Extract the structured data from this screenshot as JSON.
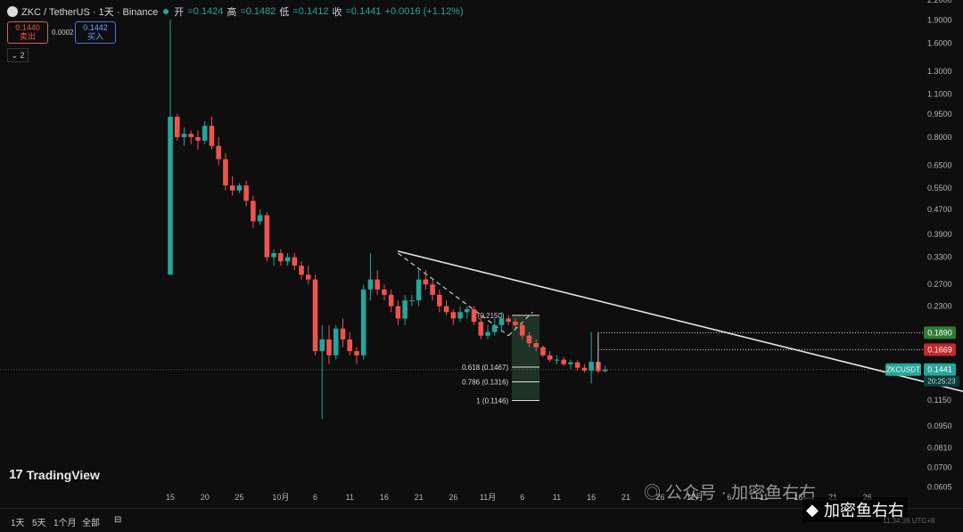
{
  "header": {
    "symbol": "ZKC / TetherUS · 1天 · Binance",
    "open_label": "开",
    "open": "=0.1424",
    "high_label": "高",
    "high": "=0.1482",
    "low_label": "低",
    "low": "=0.1412",
    "close_label": "收",
    "close": "=0.1441",
    "change": "+0.0016 (+1.12%)"
  },
  "trade": {
    "sell_price": "0.1440",
    "sell_label": "卖出",
    "spread": "0.0002",
    "buy_price": "0.1442",
    "buy_label": "买入"
  },
  "indicator_count": "2",
  "logo": "TradingView",
  "bottom": {
    "ranges": [
      "1天",
      "5天",
      "1个月",
      "全部"
    ],
    "clock": "11:34:36 UTC+8"
  },
  "watermark": {
    "text1": "公众号 · 加密鱼右右",
    "text2": "加密鱼右右"
  },
  "colors": {
    "up": "#26a69a",
    "down": "#ef5350",
    "bg": "#0e0e0e"
  },
  "chart_data": {
    "type": "candlestick",
    "yscale": "log",
    "ylim": [
      0.06,
      2.2
    ],
    "price_ticks": [
      2.2,
      1.9,
      1.6,
      1.3,
      1.1,
      0.95,
      0.8,
      0.65,
      0.55,
      0.47,
      0.39,
      0.33,
      0.27,
      0.23,
      0.19,
      0.16,
      0.135,
      0.115,
      0.095,
      0.081,
      0.07,
      0.0605
    ],
    "price_tick_labels": [
      "2.2000",
      "1.9000",
      "1.6000",
      "1.3000",
      "1.1000",
      "0.9500",
      "0.8000",
      "0.6500",
      "0.5500",
      "0.4700",
      "0.3900",
      "0.3300",
      "0.2700",
      "0.2300",
      "",
      "",
      "",
      "0.1150",
      "0.0950",
      "0.0810",
      "0.0700",
      "0.0605"
    ],
    "x_ticks": [
      {
        "label": "15",
        "day": 0
      },
      {
        "label": "20",
        "day": 5
      },
      {
        "label": "25",
        "day": 10
      },
      {
        "label": "10月",
        "day": 16
      },
      {
        "label": "6",
        "day": 21
      },
      {
        "label": "11",
        "day": 26
      },
      {
        "label": "16",
        "day": 31
      },
      {
        "label": "21",
        "day": 36
      },
      {
        "label": "26",
        "day": 41
      },
      {
        "label": "11月",
        "day": 46
      },
      {
        "label": "6",
        "day": 51
      },
      {
        "label": "11",
        "day": 56
      },
      {
        "label": "16",
        "day": 61
      },
      {
        "label": "21",
        "day": 66
      },
      {
        "label": "26",
        "day": 71
      },
      {
        "label": "12月",
        "day": 76
      },
      {
        "label": "6",
        "day": 81
      },
      {
        "label": "11",
        "day": 86
      },
      {
        "label": "16",
        "day": 91
      },
      {
        "label": "21",
        "day": 96
      },
      {
        "label": "26",
        "day": 101
      }
    ],
    "candles": [
      [
        0.29,
        1.9,
        0.29,
        0.93
      ],
      [
        0.93,
        0.95,
        0.78,
        0.8
      ],
      [
        0.8,
        0.86,
        0.75,
        0.82
      ],
      [
        0.82,
        0.84,
        0.76,
        0.8
      ],
      [
        0.8,
        0.84,
        0.73,
        0.78
      ],
      [
        0.78,
        0.9,
        0.76,
        0.87
      ],
      [
        0.87,
        0.93,
        0.73,
        0.75
      ],
      [
        0.75,
        0.8,
        0.65,
        0.68
      ],
      [
        0.68,
        0.71,
        0.54,
        0.56
      ],
      [
        0.56,
        0.6,
        0.52,
        0.54
      ],
      [
        0.54,
        0.57,
        0.53,
        0.56
      ],
      [
        0.56,
        0.58,
        0.48,
        0.5
      ],
      [
        0.5,
        0.52,
        0.41,
        0.43
      ],
      [
        0.43,
        0.47,
        0.42,
        0.45
      ],
      [
        0.45,
        0.46,
        0.32,
        0.33
      ],
      [
        0.33,
        0.35,
        0.31,
        0.34
      ],
      [
        0.34,
        0.35,
        0.31,
        0.32
      ],
      [
        0.32,
        0.34,
        0.31,
        0.33
      ],
      [
        0.33,
        0.34,
        0.3,
        0.31
      ],
      [
        0.31,
        0.32,
        0.28,
        0.29
      ],
      [
        0.29,
        0.31,
        0.27,
        0.28
      ],
      [
        0.28,
        0.29,
        0.16,
        0.165
      ],
      [
        0.165,
        0.2,
        0.1,
        0.18
      ],
      [
        0.18,
        0.2,
        0.15,
        0.16
      ],
      [
        0.16,
        0.2,
        0.155,
        0.195
      ],
      [
        0.195,
        0.21,
        0.17,
        0.18
      ],
      [
        0.18,
        0.19,
        0.16,
        0.165
      ],
      [
        0.165,
        0.17,
        0.15,
        0.16
      ],
      [
        0.16,
        0.27,
        0.155,
        0.26
      ],
      [
        0.26,
        0.34,
        0.24,
        0.28
      ],
      [
        0.28,
        0.3,
        0.25,
        0.26
      ],
      [
        0.26,
        0.27,
        0.24,
        0.25
      ],
      [
        0.25,
        0.26,
        0.22,
        0.23
      ],
      [
        0.23,
        0.24,
        0.2,
        0.21
      ],
      [
        0.21,
        0.25,
        0.2,
        0.24
      ],
      [
        0.24,
        0.25,
        0.23,
        0.24
      ],
      [
        0.24,
        0.3,
        0.23,
        0.28
      ],
      [
        0.28,
        0.3,
        0.26,
        0.27
      ],
      [
        0.27,
        0.28,
        0.24,
        0.25
      ],
      [
        0.25,
        0.26,
        0.22,
        0.23
      ],
      [
        0.23,
        0.24,
        0.215,
        0.22
      ],
      [
        0.22,
        0.225,
        0.2,
        0.21
      ],
      [
        0.21,
        0.23,
        0.205,
        0.22
      ],
      [
        0.22,
        0.23,
        0.21,
        0.225
      ],
      [
        0.225,
        0.23,
        0.2,
        0.205
      ],
      [
        0.205,
        0.215,
        0.18,
        0.185
      ],
      [
        0.185,
        0.2,
        0.18,
        0.19
      ],
      [
        0.19,
        0.21,
        0.185,
        0.2
      ],
      [
        0.2,
        0.22,
        0.19,
        0.21
      ],
      [
        0.21,
        0.215,
        0.2,
        0.205
      ],
      [
        0.205,
        0.21,
        0.195,
        0.2
      ],
      [
        0.2,
        0.205,
        0.18,
        0.185
      ],
      [
        0.185,
        0.19,
        0.17,
        0.175
      ],
      [
        0.175,
        0.18,
        0.165,
        0.17
      ],
      [
        0.17,
        0.172,
        0.158,
        0.16
      ],
      [
        0.16,
        0.165,
        0.152,
        0.155
      ],
      [
        0.155,
        0.16,
        0.15,
        0.155
      ],
      [
        0.155,
        0.158,
        0.148,
        0.15
      ],
      [
        0.15,
        0.155,
        0.145,
        0.152
      ],
      [
        0.152,
        0.154,
        0.143,
        0.146
      ],
      [
        0.146,
        0.15,
        0.141,
        0.143
      ],
      [
        0.143,
        0.19,
        0.13,
        0.1525
      ],
      [
        0.1525,
        0.155,
        0.14,
        0.1425
      ],
      [
        0.1424,
        0.1482,
        0.1412,
        0.1441
      ]
    ],
    "fib_levels": [
      {
        "label": "0.618 (0.1467)",
        "value": 0.1467
      },
      {
        "label": "0.786 (0.1316)",
        "value": 0.1316
      },
      {
        "label": "1 (0.1146)",
        "value": 0.1146
      }
    ],
    "fib_top_label": "0 (0.2150)",
    "price_labels": [
      {
        "text": "0.1890",
        "value": 0.189,
        "color": "#2e7d32"
      },
      {
        "text": "0.1669",
        "value": 0.1669,
        "color": "#c62828"
      },
      {
        "text": "0.1441",
        "value": 0.1441,
        "color": "#26a69a"
      }
    ],
    "symbol_tag": "ZKCUSDT",
    "countdown": "20:25:23",
    "trendline": {
      "start_day": 33,
      "start_price": 0.345,
      "end_day": 120,
      "end_price": 0.115
    }
  }
}
